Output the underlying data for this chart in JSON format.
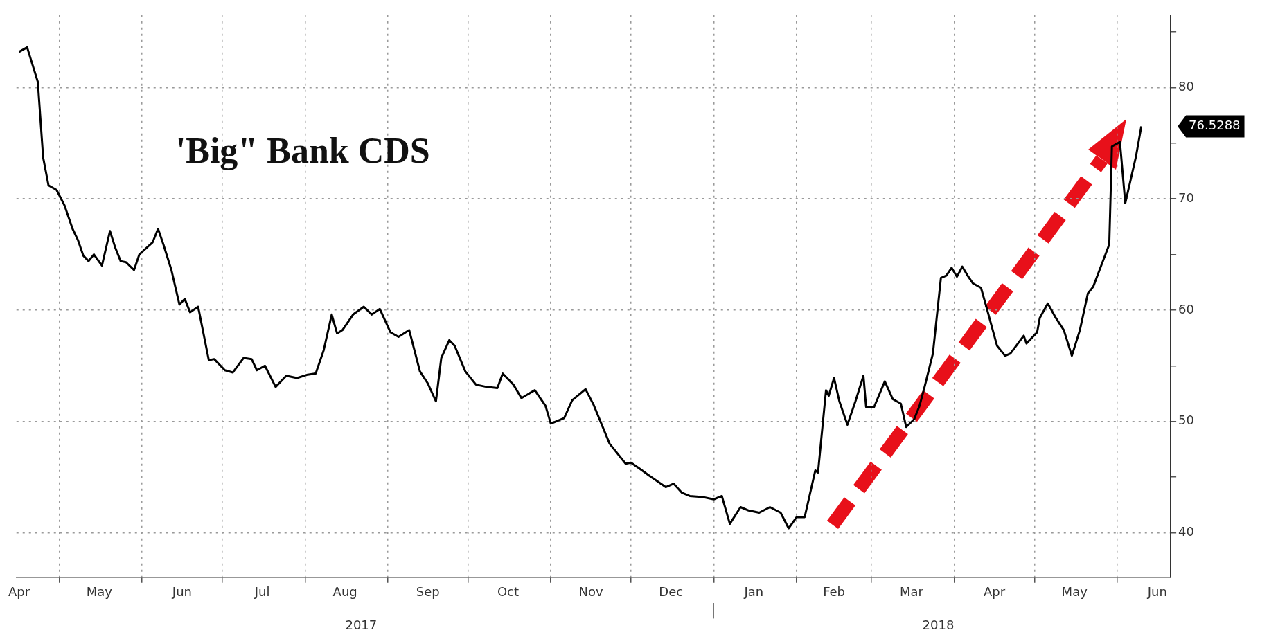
{
  "chart_data": {
    "type": "line",
    "title": "'Big\" Bank CDS",
    "series": [
      {
        "color": "#000000",
        "x": [
          "2017-04-16",
          "2017-04-19",
          "2017-04-23",
          "2017-04-25",
          "2017-04-27",
          "2017-04-30",
          "2017-05-03",
          "2017-05-06",
          "2017-05-08",
          "2017-05-10",
          "2017-05-12",
          "2017-05-14",
          "2017-05-17",
          "2017-05-20",
          "2017-05-22",
          "2017-05-24",
          "2017-05-26",
          "2017-05-29",
          "2017-05-31",
          "2017-06-05",
          "2017-06-07",
          "2017-06-09",
          "2017-06-12",
          "2017-06-15",
          "2017-06-17",
          "2017-06-19",
          "2017-06-22",
          "2017-06-26",
          "2017-06-28",
          "2017-07-02",
          "2017-07-05",
          "2017-07-09",
          "2017-07-12",
          "2017-07-14",
          "2017-07-17",
          "2017-07-21",
          "2017-07-25",
          "2017-07-29",
          "2017-08-02",
          "2017-08-05",
          "2017-08-08",
          "2017-08-11",
          "2017-08-13",
          "2017-08-15",
          "2017-08-19",
          "2017-08-23",
          "2017-08-26",
          "2017-08-29",
          "2017-09-02",
          "2017-09-05",
          "2017-09-09",
          "2017-09-13",
          "2017-09-16",
          "2017-09-19",
          "2017-09-21",
          "2017-09-24",
          "2017-09-26",
          "2017-09-30",
          "2017-10-04",
          "2017-10-08",
          "2017-10-12",
          "2017-10-14",
          "2017-10-18",
          "2017-10-21",
          "2017-10-26",
          "2017-10-30",
          "2017-11-01",
          "2017-11-06",
          "2017-11-09",
          "2017-11-14",
          "2017-11-17",
          "2017-11-23",
          "2017-11-29",
          "2017-12-01",
          "2017-12-04",
          "2017-12-08",
          "2017-12-14",
          "2017-12-17",
          "2017-12-20",
          "2017-12-23",
          "2017-12-28",
          "2018-01-01",
          "2018-01-04",
          "2018-01-07",
          "2018-01-11",
          "2018-01-14",
          "2018-01-18",
          "2018-01-22",
          "2018-01-26",
          "2018-01-29",
          "2018-02-01",
          "2018-02-04",
          "2018-02-08",
          "2018-02-09",
          "2018-02-12",
          "2018-02-13",
          "2018-02-15",
          "2018-02-17",
          "2018-02-20",
          "2018-02-23",
          "2018-02-26",
          "2018-02-27",
          "2018-03-02",
          "2018-03-06",
          "2018-03-09",
          "2018-03-12",
          "2018-03-14",
          "2018-03-17",
          "2018-03-19",
          "2018-03-21",
          "2018-03-24",
          "2018-03-27",
          "2018-03-29",
          "2018-03-31",
          "2018-04-02",
          "2018-04-04",
          "2018-04-06",
          "2018-04-08",
          "2018-04-11",
          "2018-04-13",
          "2018-04-17",
          "2018-04-20",
          "2018-04-22",
          "2018-04-27",
          "2018-04-28",
          "2018-05-02",
          "2018-05-03",
          "2018-05-06",
          "2018-05-09",
          "2018-05-12",
          "2018-05-15",
          "2018-05-18",
          "2018-05-21",
          "2018-05-23",
          "2018-05-26",
          "2018-05-29",
          "2018-05-30",
          "2018-06-02",
          "2018-06-04",
          "2018-06-08",
          "2018-06-10"
        ],
        "values": [
          83.2,
          83.6,
          80.5,
          73.7,
          71.2,
          70.8,
          69.4,
          67.3,
          66.3,
          64.9,
          64.4,
          65.0,
          64.0,
          67.1,
          65.6,
          64.4,
          64.3,
          63.6,
          65.0,
          66.1,
          67.3,
          65.9,
          63.6,
          60.5,
          61.0,
          59.8,
          60.3,
          55.5,
          55.6,
          54.6,
          54.4,
          55.7,
          55.6,
          54.6,
          55.0,
          53.1,
          54.1,
          53.9,
          54.2,
          54.3,
          56.4,
          59.6,
          57.9,
          58.2,
          59.6,
          60.3,
          59.6,
          60.1,
          58.0,
          57.6,
          58.2,
          54.5,
          53.4,
          51.8,
          55.7,
          57.3,
          56.8,
          54.5,
          53.3,
          53.1,
          53.0,
          54.3,
          53.3,
          52.1,
          52.8,
          51.4,
          49.8,
          50.3,
          51.9,
          52.9,
          51.5,
          48.0,
          46.2,
          46.3,
          45.8,
          45.1,
          44.1,
          44.4,
          43.6,
          43.3,
          43.2,
          43.0,
          43.3,
          40.8,
          42.3,
          42.0,
          41.8,
          42.3,
          41.8,
          40.4,
          41.4,
          41.4,
          45.6,
          45.4,
          52.8,
          52.3,
          53.9,
          51.8,
          49.7,
          51.8,
          54.1,
          51.3,
          51.3,
          53.6,
          52.0,
          51.6,
          49.5,
          50.2,
          51.4,
          53.2,
          56.1,
          62.9,
          63.1,
          63.8,
          63.0,
          63.9,
          63.1,
          62.4,
          62.0,
          60.3,
          56.8,
          55.9,
          56.1,
          57.7,
          57.0,
          58.0,
          59.3,
          60.6,
          59.3,
          58.2,
          55.9,
          58.2,
          61.5,
          62.1,
          64.0,
          65.9,
          74.7,
          75.1,
          69.6,
          73.8,
          76.5
        ]
      }
    ],
    "xlim": [
      "2017-04-15",
      "2018-06-21"
    ],
    "xticks": [
      {
        "value": "2017-04-16",
        "label": "Apr"
      },
      {
        "value": "2017-05-01",
        "label": null
      },
      {
        "value": "2017-05-16",
        "label": "May"
      },
      {
        "value": "2017-06-01",
        "label": null
      },
      {
        "value": "2017-06-16",
        "label": "Jun"
      },
      {
        "value": "2017-07-01",
        "label": null
      },
      {
        "value": "2017-07-16",
        "label": "Jul"
      },
      {
        "value": "2017-08-01",
        "label": null
      },
      {
        "value": "2017-08-16",
        "label": "Aug"
      },
      {
        "value": "2017-09-01",
        "label": null
      },
      {
        "value": "2017-09-16",
        "label": "Sep"
      },
      {
        "value": "2017-10-01",
        "label": null
      },
      {
        "value": "2017-10-16",
        "label": "Oct"
      },
      {
        "value": "2017-11-01",
        "label": null
      },
      {
        "value": "2017-11-16",
        "label": "Nov"
      },
      {
        "value": "2017-12-01",
        "label": null
      },
      {
        "value": "2017-12-16",
        "label": "Dec"
      },
      {
        "value": "2018-01-01",
        "label": null
      },
      {
        "value": "2018-01-16",
        "label": "Jan"
      },
      {
        "value": "2018-02-01",
        "label": null
      },
      {
        "value": "2018-02-15",
        "label": "Feb"
      },
      {
        "value": "2018-03-01",
        "label": null
      },
      {
        "value": "2018-03-16",
        "label": "Mar"
      },
      {
        "value": "2018-04-01",
        "label": null
      },
      {
        "value": "2018-04-16",
        "label": "Apr"
      },
      {
        "value": "2018-05-01",
        "label": null
      },
      {
        "value": "2018-05-16",
        "label": "May"
      },
      {
        "value": "2018-06-01",
        "label": null
      },
      {
        "value": "2018-06-16",
        "label": "Jun"
      }
    ],
    "x2lim": [
      "2017-04-15",
      "2018-06-21"
    ],
    "x2ticks": [
      {
        "value": "2017-08-22",
        "label": "2017"
      },
      {
        "value": "2018-01-01",
        "label": null
      },
      {
        "value": "2018-03-26",
        "label": "2018"
      }
    ],
    "ylim": [
      36,
      86.5
    ],
    "yticks": [
      40,
      {
        "value": 45,
        "label": null
      },
      50,
      {
        "value": 55,
        "label": null
      },
      60,
      {
        "value": 65,
        "label": null
      },
      70,
      {
        "value": 75,
        "label": null
      },
      80,
      {
        "value": 85,
        "label": null
      }
    ],
    "annotations": [
      "76.5288"
    ],
    "grid": true,
    "legend": false,
    "marker": "none",
    "line_style": "solid"
  }
}
